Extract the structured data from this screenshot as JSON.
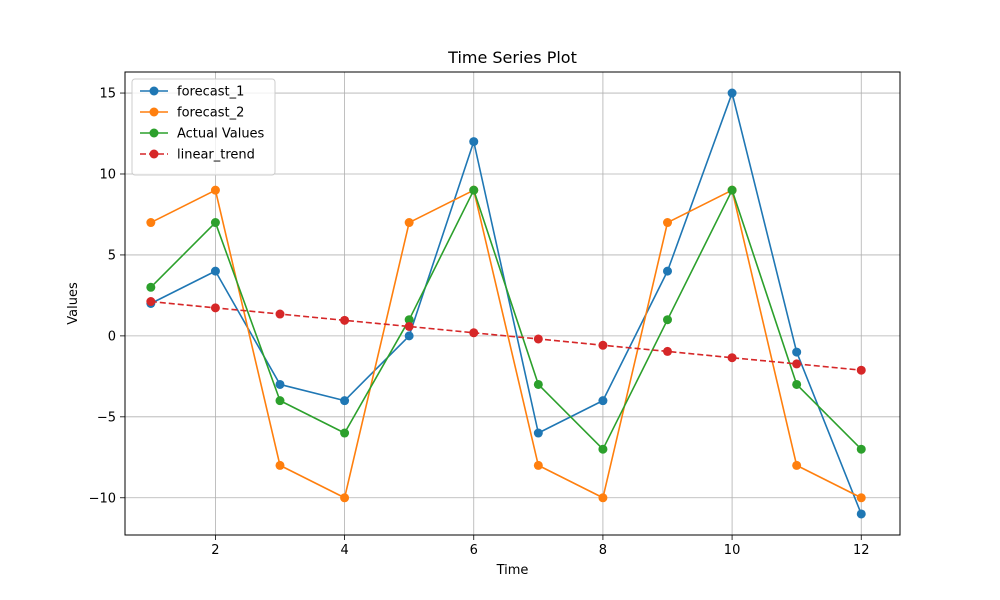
{
  "chart_data": {
    "type": "line",
    "title": "Time Series Plot",
    "xlabel": "Time",
    "ylabel": "Values",
    "x": [
      1,
      2,
      3,
      4,
      5,
      6,
      7,
      8,
      9,
      10,
      11,
      12
    ],
    "xlim": [
      0.6,
      12.6
    ],
    "ylim": [
      -12.3,
      16.3
    ],
    "xticks": [
      2,
      4,
      6,
      8,
      10,
      12
    ],
    "yticks": [
      -10,
      -5,
      0,
      5,
      10,
      15
    ],
    "ytick_labels": [
      "−10",
      "−5",
      "0",
      "5",
      "10",
      "15"
    ],
    "grid": true,
    "legend_position": "top-left",
    "series": [
      {
        "name": "forecast_1",
        "color": "#1f77b4",
        "style": "solid",
        "values": [
          2,
          4,
          -3,
          -4,
          0,
          12,
          -6,
          -4,
          4,
          15,
          -1,
          -11
        ]
      },
      {
        "name": "forecast_2",
        "color": "#ff7f0e",
        "style": "solid",
        "values": [
          7,
          9,
          -8,
          -10,
          7,
          9,
          -8,
          -10,
          7,
          9,
          -8,
          -10
        ]
      },
      {
        "name": "Actual Values",
        "color": "#2ca02c",
        "style": "solid",
        "values": [
          3,
          7,
          -4,
          -6,
          1,
          9,
          -3,
          -7,
          1,
          9,
          -3,
          -7
        ]
      },
      {
        "name": "linear_trend",
        "color": "#d62728",
        "style": "dashed",
        "values": [
          2.12,
          1.73,
          1.35,
          0.96,
          0.58,
          0.19,
          -0.19,
          -0.58,
          -0.96,
          -1.35,
          -1.73,
          -2.12
        ]
      }
    ]
  }
}
